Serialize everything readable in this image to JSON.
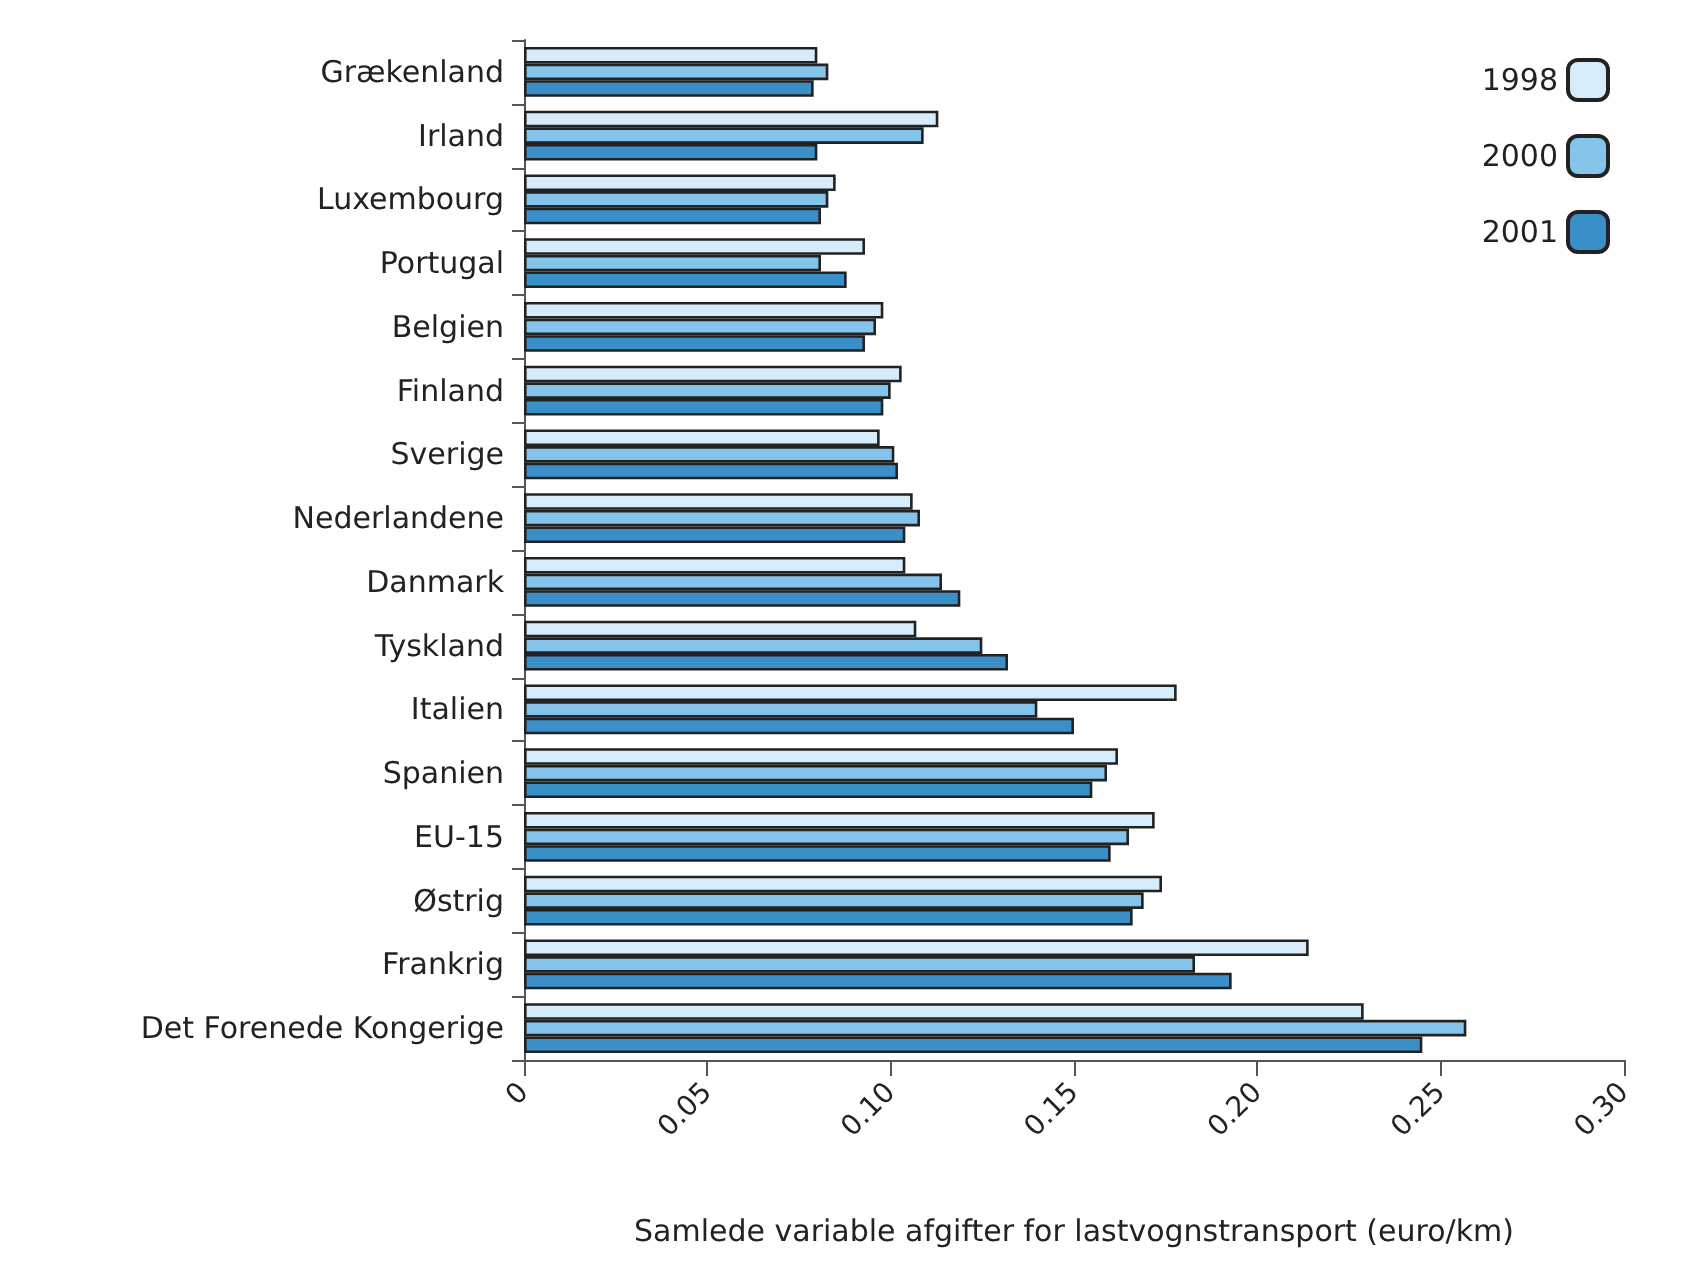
{
  "chart_data": {
    "type": "bar",
    "orientation": "horizontal",
    "xlabel": "Samlede variable afgifter for lastvognstransport (euro/km)",
    "categories": [
      "Grækenland",
      "Irland",
      "Luxembourg",
      "Portugal",
      "Belgien",
      "Finland",
      "Sverige",
      "Nederlandene",
      "Danmark",
      "Tyskland",
      "Italien",
      "Spanien",
      "EU-15",
      "Østrig",
      "Frankrig",
      "Det Forenede Kongerige"
    ],
    "series": [
      {
        "name": "1998",
        "color": "#d6ecfa",
        "values": [
          0.08,
          0.113,
          0.085,
          0.093,
          0.098,
          0.103,
          0.097,
          0.106,
          0.104,
          0.107,
          0.178,
          0.162,
          0.172,
          0.174,
          0.214,
          0.229
        ]
      },
      {
        "name": "2000",
        "color": "#85c4ea",
        "values": [
          0.083,
          0.109,
          0.083,
          0.081,
          0.096,
          0.1,
          0.101,
          0.108,
          0.114,
          0.125,
          0.14,
          0.159,
          0.165,
          0.169,
          0.183,
          0.257
        ]
      },
      {
        "name": "2001",
        "color": "#3a8fc8",
        "values": [
          0.079,
          0.08,
          0.081,
          0.088,
          0.093,
          0.098,
          0.102,
          0.104,
          0.119,
          0.132,
          0.15,
          0.155,
          0.16,
          0.166,
          0.193,
          0.245
        ]
      }
    ],
    "xlim": [
      0,
      0.3
    ],
    "xticks": [
      {
        "value": 0,
        "label": "0"
      },
      {
        "value": 0.05,
        "label": "0.05"
      },
      {
        "value": 0.1,
        "label": "0.10"
      },
      {
        "value": 0.15,
        "label": "0.15"
      },
      {
        "value": 0.2,
        "label": "0.20"
      },
      {
        "value": 0.25,
        "label": "0.25"
      },
      {
        "value": 0.3,
        "label": "0.30"
      }
    ],
    "grid": false,
    "legend": "top right"
  }
}
